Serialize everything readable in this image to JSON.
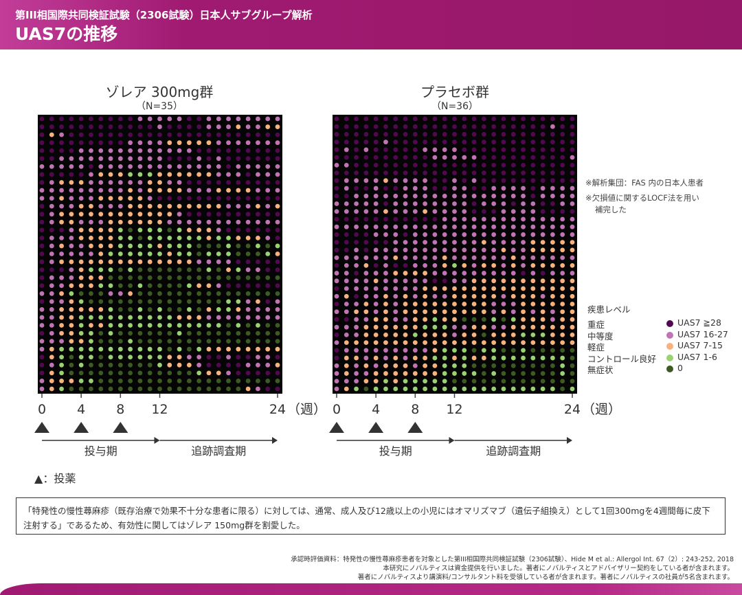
{
  "header": {
    "subtitle": "第III相国際共同検証試験（2306試験）日本人サブグループ解析",
    "title": "UAS7の推移"
  },
  "colors": {
    "D": "#52084f",
    "M": "#c074b4",
    "L": "#f7b27e",
    "G": "#9ad172",
    "N": "#3d5a23",
    "header": "#9b1a6e"
  },
  "chart_data": {
    "type": "heatmap",
    "x_ticks": [
      0,
      4,
      8,
      12,
      24
    ],
    "x_unit": "（週）",
    "x_range": [
      0,
      24
    ],
    "dosing_weeks": [
      0,
      4,
      8
    ],
    "periods": [
      {
        "label": "投与期",
        "from": 0,
        "to": 12
      },
      {
        "label": "追跡調査期",
        "from": 12,
        "to": 24
      }
    ],
    "dosing_legend": "：投薬",
    "legend_title": "疾患レベル",
    "legend": [
      {
        "code": "D",
        "label": "重症",
        "range": "UAS7 ≧28"
      },
      {
        "code": "M",
        "label": "中等度",
        "range": "UAS7 16-27"
      },
      {
        "code": "L",
        "label": "軽症",
        "range": "UAS7 7-15"
      },
      {
        "code": "G",
        "label": "コントロール良好",
        "range": "UAS7 1-6"
      },
      {
        "code": "N",
        "label": "無症状",
        "range": "0"
      }
    ],
    "panels": [
      {
        "title": "ゾレア 300mg群",
        "n": "（N=35）",
        "rows": [
          "DDDDDDDDDDMMMMMDDMMMMMMMM",
          "DDDDDDDDDDDDMDDDDMMMLMMLL",
          "DLMDDDDDDDDDDDDDDDDDDDDDD",
          "DDDDDDDDDMMMMLLLLLMMMMMMM",
          "DDDDMMMMMMMMMMMMDDDDDDDDD",
          "DDMMMMMMMMMMMDDDMDMDDDDDD",
          "MMMMMDMMMMMMMMMMMMMDMMMMM",
          "DDDDDMLLLGGGLLLLLLMMMDMMM",
          "DMLLLMMMMMMLLMMDDDDDDDDDD",
          "MMMMMMMMMLMLLLLMMMLLLLMMM",
          "MMLMMMLLLLLMDDDDDDDDDDDDD",
          "DMMMLLMMMLLLLLLLLLLMMMLML",
          "DMLLLLLLLLLLLLMDDDDDDDDDD",
          "DMLLMMMLLLLLLMMMMMMMMMMMM",
          "DDDMLLLLGNGGGNGLLLMDDDDDD",
          "DMMMLLLLGGNGGGGGGLGGLLLMD",
          "DMLMMLLLGGGGLGGGNNNGNNGNG",
          "DMMMMMLGGGGGGLGGNGGGNNNGL",
          "DMLLLLLLLLLLLLLLMMMMDDDDD",
          "DDDMLGGGNGNNNNNNNGNLGMMDD",
          "DMMMLLLNNNNNNNNNNNNNNNNNN",
          "DMMLLLGGNNGNNNNGLLMDDDDDD",
          "MMLGNNNMMLNNNNNNNNNNNNNNN",
          "DMMLGNNNNNNNNNNNNNNGGMLDM",
          "MMLLLLLGNNGNGNNGNLGGLMMMM",
          "MMLLGGGGGGGGGGLLLMMMMMMMM",
          "MMLLGLLGGGGGGGGGGGGNGNGNN",
          "DMLLGGNGNNNNNNGNNNNNNNNNN",
          "MMMLLGNNNGNNNNNNNNNNNNNNN",
          "MLGGGGGGGGGGGNGNGLLLLLLLL",
          "DLGNGGNGGGGGGLLMMDDMDDMMD",
          "DMGNGNNNNNNNGLLLMDDDDMMML",
          "DLGNNNNNNNNNNNNNGLLMDDDDD",
          "MLLLGGNNNNNNNNNNNNNNNNNNN",
          "MLGNNNNNNNNNNNNNNNNNNLMDD"
        ]
      },
      {
        "title": "プラセボ群",
        "n": "（N=36）",
        "rows": [
          "DDDDDDDDDDDDDDDDDDDDDDDDD",
          "DDDDDDDDDDDDDDDDDDDDDDMDD",
          "DDDDDDDDDDDDDDDDDDDDDDDDD",
          "DDDDDMDDDDDDDDDDDDDDDDDDD",
          "DMDMDDDDDMMMMDDDDDDDDDDDD",
          "DDDDDDDDDDMMMMMDDDDDDDDDM",
          "MMDDDDDDDDDDDDDDDDDDDDDDD",
          "DDDDDDDDDDDDDDDDDDDDDDDDD",
          "DMMMMLMMMMDDMDMDDDDDDDDDD",
          "DMDDMDDMMMDDMMDDMMMMDMMMM",
          "DDMMMMMMMMMMMMMMMMMMDMMMM",
          "MMMMMDMMMMMMMMDMMMDMMDDMM",
          "MMMMMLMMMLMMMMDDDMMMMDDDD",
          "DDDDDDDDDDDMMMMMMMMMMMMMM",
          "MMMMMMMMMMMMMMMMMMMMMMMMM",
          "DDDDMMMDMMMMMMMMMMMMMMMMM",
          "DDDDDDMMMMMMMMMLMMMMLLLLL",
          "DDMDMMMMMMMMMMMMMLMMLLLLL",
          "MMMMMMLMMMMLMMMMMMLMMMMMM",
          "DMMLDMDDMMMLGLMLLMLMLLLLL",
          "MMDMMMLLLLMMMMMMMMMDMDMMM",
          "MMMMLMMMMMDDMMLLLLLLLLLLL",
          "DMMMMMMMMLLLLLLLLLLLLLLLL",
          "MLDMMLMLMLMMLLLLLMLLLMLLL",
          "DMMLMLMLLLLLLLLLMMMLLLLLL",
          "MMLLMLMLLLLLLLLLMLMLMLMLL",
          "DDMMLLMMLLGLLNNNGNGLLLMLL",
          "MMMLLLLLLGGGMMLLMMLLLLLLL",
          "DMMLLLLLGLLLMLLNLLLGGGLLL",
          "MLLLLLLLLLLLLLLLLLLLLLLLL",
          "DMMMMMMMMMLGGGNGGNNGNNNNN",
          "DLLMLMLMLLGGLGLLGGGGGGGGN",
          "MLMLMLLLMLLGGGNNNNNNNNNGN",
          "MLMMLLLLLLLGGGGNGNNNNNNGN",
          "MMMLLGLGGGGGNNNNNNNNNNNNN",
          "MLGNGGGGGGGGGGGGGGGGGGGNG"
        ]
      }
    ]
  },
  "notes": [
    "※解析集団：FAS 内の日本人患者",
    "※欠損値に関するLOCF法を用い",
    "補完した"
  ],
  "remark": "「特発性の慢性蕁麻疹（既存治療で効果不十分な患者に限る）に対しては、通常、成人及び12歳以上の小児にはオマリズマブ（遺伝子組換え）として1回300mgを4週間毎に皮下注射する」であるため、有効性に関してはゾレア 150mg群を割愛した。",
  "footer": [
    "承認時評価資料：特発性の慢性蕁麻疹患者を対象とした第III相国際共同検証試験（2306試験）、Hide M et al.: Allergol Int. 67（2）: 243-252, 2018",
    "本研究にノバルティスは資金提供を行いました。著者にノバルティスとアドバイザリー契約をしている者が含まれます。",
    "著者にノバルティスより講演料/コンサルタント料を受領している者が含まれます。著者にノバルティスの社員が5名含まれます。"
  ]
}
